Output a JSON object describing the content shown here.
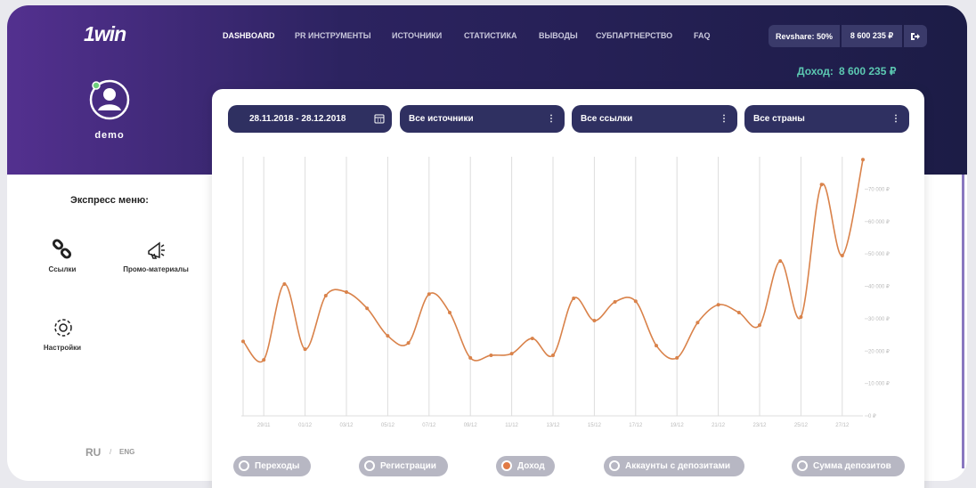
{
  "header": {
    "logo": "1win",
    "nav": [
      "DASHBOARD",
      "PR ИНСТРУМЕНТЫ",
      "ИСТОЧНИКИ",
      "СТАТИСТИКА",
      "ВЫВОДЫ",
      "СУБПАРТНЕРСТВО",
      "FAQ"
    ],
    "revshare": "Revshare: 50%",
    "balance": "8 600 235 ₽",
    "income_label": "Доход:",
    "income_value": "8 600 235 ₽"
  },
  "profile": {
    "username": "demo"
  },
  "express_menu": {
    "title": "Экспресс меню:",
    "items": [
      "Ссылки",
      "Промо-материалы",
      "Настройки"
    ]
  },
  "language": {
    "active": "RU",
    "separator": "/",
    "other": "ENG"
  },
  "filters": [
    "28.11.2018 - 28.12.2018",
    "Все источники",
    "Все ссылки",
    "Все страны"
  ],
  "chart_data": {
    "type": "line",
    "color": "#d9824a",
    "categories": [
      null,
      "29/11",
      null,
      "01/12",
      null,
      "03/12",
      null,
      "05/12",
      null,
      "07/12",
      null,
      "09/12",
      null,
      "11/12",
      null,
      "13/12",
      null,
      "15/12",
      null,
      "17/12",
      null,
      "19/12",
      null,
      "21/12",
      null,
      "23/12",
      null,
      "25/12",
      null,
      "27/12",
      null
    ],
    "values": [
      23000,
      17300,
      40700,
      20600,
      37100,
      38200,
      33200,
      24700,
      22500,
      37600,
      31900,
      17900,
      18700,
      19200,
      23900,
      18700,
      36300,
      29400,
      35200,
      35400,
      21700,
      17900,
      28800,
      34300,
      31900,
      28000,
      47800,
      30500,
      71400,
      49500,
      79100
    ],
    "ylim": [
      0,
      80000
    ],
    "yticks": [
      {
        "value": 0,
        "label": "0 ₽"
      },
      {
        "value": 10000,
        "label": "10 000 ₽"
      },
      {
        "value": 20000,
        "label": "20 000 ₽"
      },
      {
        "value": 30000,
        "label": "30 000 ₽"
      },
      {
        "value": 40000,
        "label": "40 000 ₽"
      },
      {
        "value": 50000,
        "label": "50 000 ₽"
      },
      {
        "value": 60000,
        "label": "60 000 ₽"
      },
      {
        "value": 70000,
        "label": "70 000 ₽"
      }
    ]
  },
  "toggles": [
    "Переходы",
    "Регистрации",
    "Доход",
    "Аккаунты с депозитами",
    "Сумма депозитов"
  ]
}
